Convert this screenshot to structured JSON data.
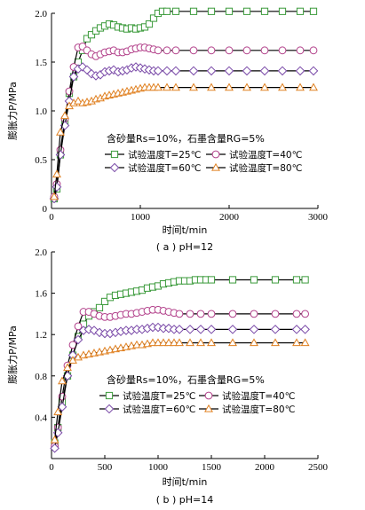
{
  "chart_data": [
    {
      "type": "line",
      "caption": "( a ) pH=12",
      "xlabel": "时间t/min",
      "ylabel": "膨胀力P/MPa",
      "xlim": [
        0,
        3000
      ],
      "ylim": [
        0,
        2.0
      ],
      "xticks": [
        0,
        1000,
        2000,
        3000
      ],
      "xtick_labels": [
        "0",
        "1000",
        "2000",
        "3000"
      ],
      "yticks": [
        0,
        0.5,
        1.0,
        1.5,
        2.0
      ],
      "ytick_labels": [
        "0",
        "0.5",
        "1.0",
        "1.5",
        "2.0"
      ],
      "annotation": "含砂量Rs=10%，石墨含量RG=5%",
      "legend_placement": "center-right",
      "series": [
        {
          "name": "试验温度T=25℃",
          "marker": "square",
          "color": "#3a9a3a",
          "x": [
            30,
            60,
            100,
            150,
            200,
            250,
            300,
            350,
            400,
            450,
            500,
            550,
            600,
            650,
            700,
            750,
            800,
            850,
            900,
            950,
            1000,
            1050,
            1100,
            1150,
            1200,
            1250,
            1300,
            1400,
            1600,
            1800,
            2000,
            2200,
            2400,
            2600,
            2800,
            2950
          ],
          "y": [
            0.1,
            0.2,
            0.55,
            0.9,
            1.18,
            1.35,
            1.5,
            1.62,
            1.74,
            1.78,
            1.82,
            1.85,
            1.87,
            1.89,
            1.88,
            1.86,
            1.85,
            1.84,
            1.85,
            1.84,
            1.85,
            1.86,
            1.89,
            1.95,
            2.0,
            2.02,
            2.02,
            2.02,
            2.02,
            2.02,
            2.02,
            2.02,
            2.02,
            2.02,
            2.02,
            2.02
          ]
        },
        {
          "name": "试验温度T=40℃",
          "marker": "circle",
          "color": "#b2408a",
          "x": [
            30,
            60,
            100,
            150,
            200,
            250,
            300,
            350,
            400,
            450,
            500,
            550,
            600,
            650,
            700,
            750,
            800,
            850,
            900,
            950,
            1000,
            1050,
            1100,
            1150,
            1200,
            1300,
            1400,
            1600,
            1800,
            2000,
            2200,
            2400,
            2600,
            2800,
            2950
          ],
          "y": [
            0.12,
            0.25,
            0.6,
            0.92,
            1.2,
            1.45,
            1.65,
            1.66,
            1.62,
            1.58,
            1.56,
            1.58,
            1.6,
            1.61,
            1.62,
            1.6,
            1.6,
            1.61,
            1.63,
            1.64,
            1.65,
            1.65,
            1.64,
            1.63,
            1.62,
            1.62,
            1.62,
            1.62,
            1.62,
            1.62,
            1.62,
            1.62,
            1.62,
            1.62,
            1.62
          ]
        },
        {
          "name": "试验温度T=60℃",
          "marker": "diamond",
          "color": "#7a4aa8",
          "x": [
            30,
            60,
            100,
            150,
            200,
            250,
            300,
            350,
            400,
            450,
            500,
            550,
            600,
            650,
            700,
            750,
            800,
            850,
            900,
            950,
            1000,
            1050,
            1100,
            1150,
            1200,
            1300,
            1400,
            1600,
            1800,
            2000,
            2200,
            2400,
            2600,
            2800,
            2950
          ],
          "y": [
            0.1,
            0.22,
            0.55,
            0.85,
            1.1,
            1.35,
            1.43,
            1.45,
            1.42,
            1.38,
            1.36,
            1.37,
            1.4,
            1.41,
            1.42,
            1.4,
            1.41,
            1.42,
            1.44,
            1.45,
            1.44,
            1.43,
            1.42,
            1.41,
            1.41,
            1.41,
            1.41,
            1.41,
            1.41,
            1.41,
            1.41,
            1.41,
            1.41,
            1.41,
            1.41
          ]
        },
        {
          "name": "试验温度T=80℃",
          "marker": "triangle",
          "color": "#e08020",
          "x": [
            30,
            60,
            100,
            150,
            200,
            250,
            300,
            350,
            400,
            450,
            500,
            550,
            600,
            650,
            700,
            750,
            800,
            850,
            900,
            950,
            1000,
            1050,
            1100,
            1150,
            1200,
            1300,
            1400,
            1600,
            1800,
            2000,
            2200,
            2400,
            2600,
            2800,
            2950
          ],
          "y": [
            0.12,
            0.35,
            0.78,
            0.95,
            1.05,
            1.08,
            1.1,
            1.08,
            1.09,
            1.1,
            1.12,
            1.13,
            1.15,
            1.16,
            1.17,
            1.18,
            1.19,
            1.2,
            1.21,
            1.22,
            1.23,
            1.24,
            1.24,
            1.24,
            1.24,
            1.24,
            1.24,
            1.24,
            1.24,
            1.24,
            1.24,
            1.24,
            1.24,
            1.24,
            1.24
          ]
        }
      ]
    },
    {
      "type": "line",
      "caption": "( b ) pH=14",
      "xlabel": "时间t/min",
      "ylabel": "膨胀力P/MPa",
      "xlim": [
        0,
        2500
      ],
      "ylim": [
        0,
        2.0
      ],
      "xticks": [
        0,
        500,
        1000,
        1500,
        2000,
        2500
      ],
      "xtick_labels": [
        "0",
        "500",
        "1000",
        "1500",
        "2000",
        "2500"
      ],
      "yticks": [
        0.4,
        0.8,
        1.2,
        1.6,
        2.0
      ],
      "ytick_labels": [
        "0.4",
        "0.8",
        "1.2",
        "1.6",
        "2.0"
      ],
      "annotation": "含砂量Rs=10%，石墨含量RG=5%",
      "legend_placement": "bottom-right",
      "series": [
        {
          "name": "试验温度T=25℃",
          "marker": "square",
          "color": "#3a9a3a",
          "x": [
            30,
            60,
            100,
            150,
            200,
            250,
            300,
            350,
            400,
            450,
            500,
            550,
            600,
            650,
            700,
            750,
            800,
            850,
            900,
            950,
            1000,
            1050,
            1100,
            1150,
            1200,
            1250,
            1300,
            1350,
            1400,
            1450,
            1500,
            1700,
            1900,
            2100,
            2300,
            2380
          ],
          "y": [
            0.15,
            0.3,
            0.55,
            0.8,
            1.0,
            1.18,
            1.3,
            1.38,
            1.42,
            1.46,
            1.52,
            1.56,
            1.58,
            1.59,
            1.6,
            1.61,
            1.62,
            1.63,
            1.65,
            1.66,
            1.67,
            1.69,
            1.7,
            1.71,
            1.72,
            1.72,
            1.72,
            1.73,
            1.73,
            1.73,
            1.73,
            1.73,
            1.73,
            1.73,
            1.73,
            1.73
          ]
        },
        {
          "name": "试验温度T=40℃",
          "marker": "circle",
          "color": "#b2408a",
          "x": [
            30,
            60,
            100,
            150,
            200,
            250,
            300,
            350,
            400,
            450,
            500,
            550,
            600,
            650,
            700,
            750,
            800,
            850,
            900,
            950,
            1000,
            1050,
            1100,
            1150,
            1200,
            1300,
            1400,
            1500,
            1700,
            1900,
            2100,
            2300,
            2380
          ],
          "y": [
            0.12,
            0.3,
            0.6,
            0.9,
            1.1,
            1.28,
            1.42,
            1.42,
            1.4,
            1.38,
            1.37,
            1.37,
            1.38,
            1.39,
            1.4,
            1.4,
            1.41,
            1.42,
            1.43,
            1.44,
            1.44,
            1.43,
            1.42,
            1.41,
            1.4,
            1.4,
            1.4,
            1.4,
            1.4,
            1.4,
            1.4,
            1.4,
            1.4
          ]
        },
        {
          "name": "试验温度T=60℃",
          "marker": "diamond",
          "color": "#7a4aa8",
          "x": [
            30,
            60,
            100,
            150,
            200,
            250,
            300,
            350,
            400,
            450,
            500,
            550,
            600,
            650,
            700,
            750,
            800,
            850,
            900,
            950,
            1000,
            1050,
            1100,
            1150,
            1200,
            1300,
            1400,
            1500,
            1700,
            1900,
            2100,
            2300,
            2380
          ],
          "y": [
            0.1,
            0.25,
            0.5,
            0.8,
            1.0,
            1.15,
            1.24,
            1.25,
            1.24,
            1.22,
            1.21,
            1.21,
            1.22,
            1.23,
            1.24,
            1.24,
            1.25,
            1.25,
            1.26,
            1.27,
            1.27,
            1.26,
            1.26,
            1.25,
            1.25,
            1.25,
            1.25,
            1.25,
            1.25,
            1.25,
            1.25,
            1.25,
            1.25
          ]
        },
        {
          "name": "试验温度T=80℃",
          "marker": "triangle",
          "color": "#e08020",
          "x": [
            30,
            60,
            100,
            150,
            200,
            250,
            300,
            350,
            400,
            450,
            500,
            550,
            600,
            650,
            700,
            750,
            800,
            850,
            900,
            950,
            1000,
            1050,
            1100,
            1150,
            1200,
            1300,
            1400,
            1500,
            1700,
            1900,
            2100,
            2300,
            2380
          ],
          "y": [
            0.18,
            0.45,
            0.75,
            0.88,
            0.95,
            0.98,
            1.0,
            1.01,
            1.02,
            1.03,
            1.04,
            1.05,
            1.06,
            1.07,
            1.08,
            1.09,
            1.1,
            1.1,
            1.11,
            1.12,
            1.12,
            1.12,
            1.12,
            1.12,
            1.12,
            1.12,
            1.12,
            1.12,
            1.12,
            1.12,
            1.12,
            1.12,
            1.12
          ]
        }
      ]
    }
  ]
}
